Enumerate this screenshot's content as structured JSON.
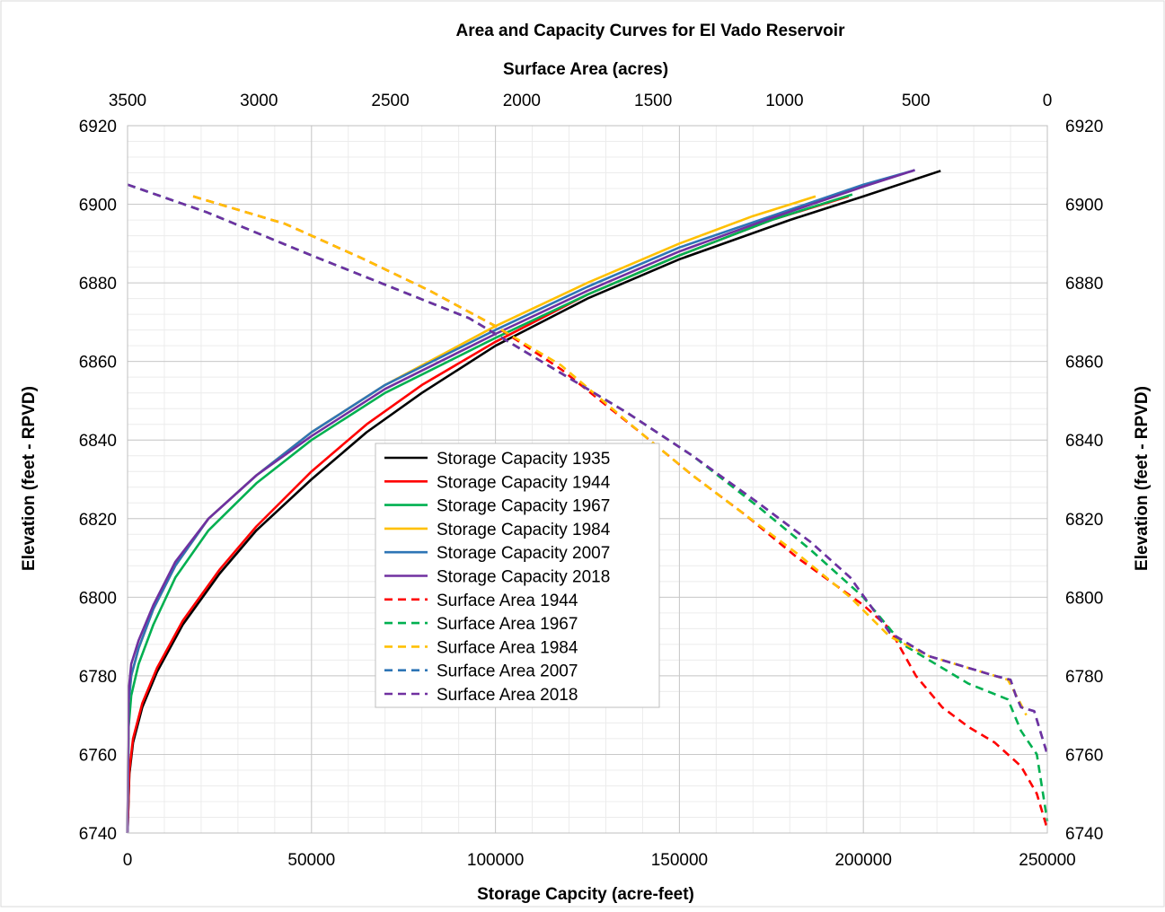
{
  "chart_data": {
    "type": "line",
    "title": "Area and Capacity Curves for El Vado  Reservoir",
    "top_xlabel": "Surface Area (acres)",
    "xlabel": "Storage Capcity (acre-feet)",
    "ylabel_left": "Elevation (feet - RPVD)",
    "ylabel_right": "Elevation (feet - RPVD)",
    "xlim": [
      0,
      250000
    ],
    "xlim_top": [
      3500,
      0
    ],
    "ylim": [
      6740,
      6920
    ],
    "x_ticks": [
      "0",
      "50000",
      "100000",
      "150000",
      "200000",
      "250000"
    ],
    "x_top_ticks": [
      "3500",
      "3000",
      "2500",
      "2000",
      "1500",
      "1000",
      "500",
      "0"
    ],
    "y_ticks": [
      "6740",
      "6760",
      "6780",
      "6800",
      "6820",
      "6840",
      "6860",
      "6880",
      "6900",
      "6920"
    ],
    "grid": true,
    "legend_position": "center",
    "capacity_series": [
      {
        "name": "Storage Capacity 1935",
        "color": "#000000",
        "axis": "bottom",
        "x": [
          0,
          500,
          1500,
          4000,
          8000,
          15000,
          25000,
          35000,
          50000,
          65000,
          80000,
          100000,
          125000,
          150000,
          180000,
          200000,
          221000
        ],
        "y": [
          6740,
          6755,
          6763,
          6772,
          6781,
          6793,
          6806,
          6817,
          6830,
          6842,
          6852,
          6864,
          6876,
          6886,
          6896,
          6902,
          6908.5
        ]
      },
      {
        "name": "Storage Capacity 1944",
        "color": "#ff0000",
        "axis": "bottom",
        "x": [
          0,
          500,
          1500,
          4000,
          8000,
          15000,
          25000,
          35000,
          50000,
          65000,
          80000,
          100000,
          125000,
          150000,
          175000,
          196000
        ],
        "y": [
          6740,
          6756,
          6764,
          6773,
          6782,
          6794,
          6807,
          6818,
          6832,
          6844,
          6854,
          6865,
          6877,
          6887,
          6896,
          6902
        ]
      },
      {
        "name": "Storage Capacity 1967",
        "color": "#00b050",
        "axis": "bottom",
        "x": [
          0,
          300,
          1000,
          3000,
          7000,
          13000,
          22000,
          35000,
          50000,
          70000,
          100000,
          125000,
          150000,
          175000,
          197000
        ],
        "y": [
          6740,
          6767,
          6775,
          6783,
          6793,
          6805,
          6817,
          6829,
          6840,
          6852,
          6866,
          6877,
          6887,
          6896,
          6902.5
        ]
      },
      {
        "name": "Storage Capacity 1984",
        "color": "#ffc000",
        "axis": "bottom",
        "x": [
          0,
          300,
          1000,
          3000,
          7000,
          13000,
          22000,
          35000,
          50000,
          70000,
          100000,
          125000,
          150000,
          170000,
          187000
        ],
        "y": [
          6740,
          6773,
          6780,
          6787,
          6797,
          6808,
          6820,
          6831,
          6842,
          6854,
          6869,
          6880,
          6890,
          6897,
          6902
        ]
      },
      {
        "name": "Storage Capacity 2007",
        "color": "#2e75b6",
        "axis": "bottom",
        "x": [
          0,
          300,
          1000,
          3000,
          7000,
          13000,
          22000,
          35000,
          50000,
          70000,
          100000,
          125000,
          150000,
          175000,
          200000,
          214000
        ],
        "y": [
          6740,
          6773,
          6780,
          6787,
          6797,
          6808,
          6820,
          6831,
          6842,
          6854,
          6868,
          6879,
          6889,
          6897,
          6905,
          6908.7
        ]
      },
      {
        "name": "Storage Capacity 2018",
        "color": "#7030a0",
        "axis": "bottom",
        "x": [
          0,
          300,
          1000,
          3000,
          7000,
          13000,
          22000,
          35000,
          50000,
          70000,
          100000,
          125000,
          150000,
          175000,
          200000,
          214000
        ],
        "y": [
          6740,
          6776,
          6783,
          6789,
          6798,
          6809,
          6820,
          6831,
          6841,
          6853,
          6867,
          6878,
          6888,
          6896.5,
          6904.5,
          6908.7
        ]
      }
    ],
    "area_series": [
      {
        "name": "Surface Area 1944",
        "color": "#ff0000",
        "axis": "top",
        "x": [
          3250,
          2900,
          2600,
          2350,
          2100,
          1850,
          1550,
          1350,
          1150,
          950,
          700,
          600,
          500,
          400,
          300,
          200,
          100,
          40,
          0
        ],
        "y": [
          6902,
          6895,
          6886,
          6878,
          6869,
          6858,
          6842,
          6831,
          6821,
          6810,
          6798,
          6792,
          6780,
          6772,
          6767,
          6763,
          6757,
          6750,
          6741
        ]
      },
      {
        "name": "Surface Area 1967",
        "color": "#00b050",
        "axis": "top",
        "x": [
          3500,
          3200,
          2800,
          2500,
          2200,
          2100,
          1850,
          1600,
          1350,
          1100,
          900,
          700,
          550,
          400,
          300,
          150,
          100,
          40,
          0
        ],
        "y": [
          6905,
          6898,
          6887,
          6879,
          6871,
          6867,
          6857,
          6847,
          6836,
          6823,
          6812,
          6800,
          6788,
          6782,
          6778,
          6774,
          6766,
          6760,
          6743
        ]
      },
      {
        "name": "Surface Area 1984",
        "color": "#ffc000",
        "axis": "top",
        "x": [
          3250,
          2900,
          2600,
          2350,
          2100,
          1850,
          1550,
          1350,
          1150,
          950,
          750,
          600,
          450,
          300,
          200,
          150,
          110,
          80
        ],
        "y": [
          6902,
          6895,
          6886,
          6878,
          6869,
          6859,
          6842,
          6831,
          6821,
          6811,
          6800,
          6790,
          6785,
          6782,
          6780,
          6779,
          6774,
          6770
        ]
      },
      {
        "name": "Surface Area 2007",
        "color": "#2e75b6",
        "axis": "top",
        "x": [
          3500,
          3200,
          2800,
          2500,
          2200,
          2100,
          1850,
          1600,
          1350,
          1100,
          900,
          750,
          600,
          450,
          300,
          200,
          140,
          120,
          100,
          50,
          0
        ],
        "y": [
          6905,
          6898,
          6887,
          6879,
          6871,
          6867,
          6857,
          6847,
          6836,
          6824,
          6814,
          6805,
          6791,
          6785,
          6782,
          6780,
          6779,
          6775,
          6772,
          6771,
          6760
        ]
      },
      {
        "name": "Surface Area 2018",
        "color": "#7030a0",
        "axis": "top",
        "x": [
          3500,
          3200,
          2800,
          2500,
          2200,
          2100,
          1850,
          1600,
          1350,
          1100,
          900,
          750,
          600,
          450,
          300,
          200,
          140,
          120,
          100,
          50,
          0
        ],
        "y": [
          6905,
          6898,
          6887,
          6879,
          6871,
          6867,
          6857,
          6847,
          6836,
          6824,
          6814,
          6805,
          6791,
          6785,
          6782,
          6780,
          6779,
          6775,
          6772,
          6771,
          6760
        ]
      }
    ]
  }
}
